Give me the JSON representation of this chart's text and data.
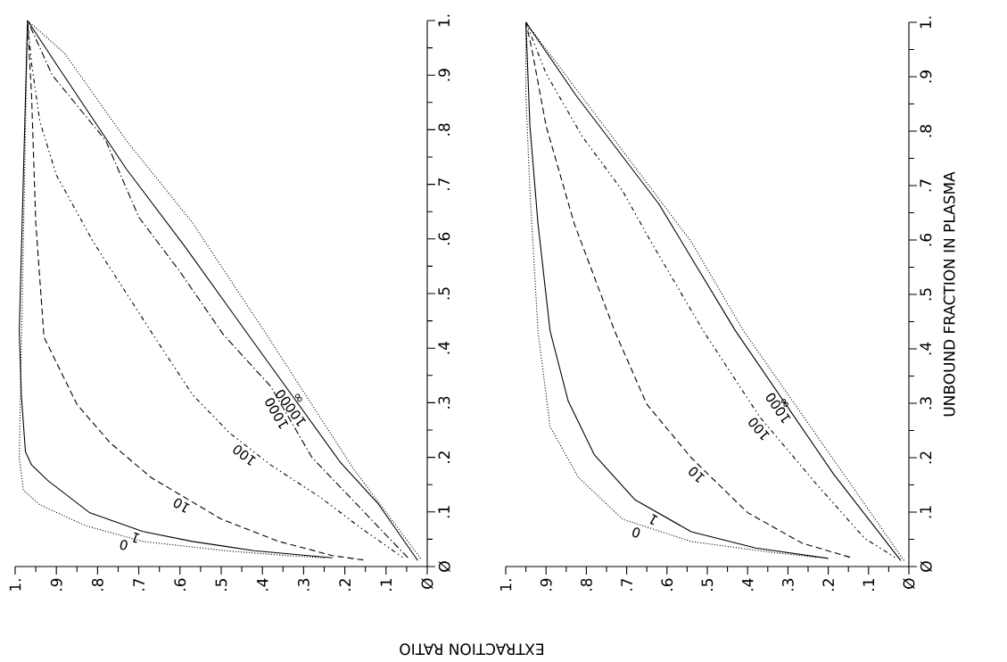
{
  "chart_data": [
    {
      "type": "line",
      "xlim": [
        1,
        0
      ],
      "ylim": [
        0,
        1
      ],
      "xticks": [
        {
          "value": 0,
          "label": "Ø"
        },
        {
          "value": 0.05,
          "label": null
        },
        {
          "value": 0.1,
          "label": ".1"
        },
        {
          "value": 0.15,
          "label": null
        },
        {
          "value": 0.2,
          "label": ".2"
        },
        {
          "value": 0.25,
          "label": null
        },
        {
          "value": 0.3,
          "label": ".3"
        },
        {
          "value": 0.35,
          "label": null
        },
        {
          "value": 0.4,
          "label": ".4"
        },
        {
          "value": 0.45,
          "label": null
        },
        {
          "value": 0.5,
          "label": ".5"
        },
        {
          "value": 0.55,
          "label": null
        },
        {
          "value": 0.6,
          "label": ".6"
        },
        {
          "value": 0.65,
          "label": null
        },
        {
          "value": 0.7,
          "label": ".7"
        },
        {
          "value": 0.75,
          "label": null
        },
        {
          "value": 0.8,
          "label": ".8"
        },
        {
          "value": 0.85,
          "label": null
        },
        {
          "value": 0.9,
          "label": ".9"
        },
        {
          "value": 0.95,
          "label": null
        },
        {
          "value": 1,
          "label": "1."
        }
      ],
      "yticks": [
        {
          "value": 0,
          "label": "Ø"
        },
        {
          "value": 0.05,
          "label": null
        },
        {
          "value": 0.1,
          "label": ".1"
        },
        {
          "value": 0.15,
          "label": null
        },
        {
          "value": 0.2,
          "label": ".2"
        },
        {
          "value": 0.25,
          "label": null
        },
        {
          "value": 0.3,
          "label": ".3"
        },
        {
          "value": 0.35,
          "label": null
        },
        {
          "value": 0.4,
          "label": ".4"
        },
        {
          "value": 0.45,
          "label": null
        },
        {
          "value": 0.5,
          "label": ".5"
        },
        {
          "value": 0.55,
          "label": null
        },
        {
          "value": 0.6,
          "label": ".6"
        },
        {
          "value": 0.65,
          "label": null
        },
        {
          "value": 0.7,
          "label": ".7"
        },
        {
          "value": 0.75,
          "label": null
        },
        {
          "value": 0.8,
          "label": ".8"
        },
        {
          "value": 0.85,
          "label": null
        },
        {
          "value": 0.9,
          "label": ".9"
        },
        {
          "value": 0.95,
          "label": null
        },
        {
          "value": 1,
          "label": "1."
        }
      ],
      "series": [
        {
          "name": "0",
          "color": "#000000",
          "line_style": "dotted",
          "values": [
            0.016,
            0.02,
            0.029,
            0.046,
            0.075,
            0.113,
            0.14,
            0.2,
            1
          ],
          "x": [
            0.25,
            0.34,
            0.49,
            0.69,
            0.83,
            0.94,
            0.98,
            0.99,
            0.97
          ]
        },
        {
          "name": "1",
          "color": "#000000",
          "line_style": "solid",
          "values": [
            0.016,
            0.029,
            0.046,
            0.064,
            0.099,
            0.157,
            0.186,
            0.21,
            0.315,
            0.43,
            1
          ],
          "x": [
            0.23,
            0.42,
            0.57,
            0.69,
            0.82,
            0.92,
            0.96,
            0.975,
            0.985,
            0.99,
            0.97
          ]
        },
        {
          "name": "10",
          "color": "#000000",
          "line_style": "dashed",
          "values": [
            0.012,
            0.02,
            0.046,
            0.087,
            0.163,
            0.227,
            0.297,
            0.42,
            0.63,
            0.86,
            1
          ],
          "x": [
            0.155,
            0.23,
            0.36,
            0.5,
            0.67,
            0.77,
            0.85,
            0.93,
            0.95,
            0.96,
            0.97
          ]
        },
        {
          "name": "100",
          "color": "#000000",
          "line_style": "dashdotdotted",
          "values": [
            0.017,
            0.07,
            0.127,
            0.186,
            0.245,
            0.315,
            0.43,
            0.594,
            0.717,
            0.815,
            0.92,
            1
          ],
          "x": [
            0.06,
            0.16,
            0.26,
            0.38,
            0.48,
            0.57,
            0.67,
            0.81,
            0.9,
            0.94,
            0.96,
            0.97
          ]
        },
        {
          "name": "1000",
          "color": "#000000",
          "line_style": "dashdotted",
          "values": [
            0.016,
            0.2,
            0.33,
            0.425,
            0.54,
            0.64,
            0.78,
            0.9,
            1
          ],
          "x": [
            0.047,
            0.28,
            0.38,
            0.495,
            0.6,
            0.7,
            0.78,
            0.91,
            0.97
          ]
        },
        {
          "name": "10000",
          "color": "#000000",
          "line_style": "solid",
          "values": [
            0.011,
            0.116,
            0.19,
            0.42,
            0.588,
            0.728,
            0.92,
            1
          ],
          "x": [
            0.023,
            0.12,
            0.21,
            0.43,
            0.59,
            0.73,
            0.9,
            0.97
          ]
        },
        {
          "name": "∞",
          "color": "#000000",
          "line_style": "dotted",
          "values": [
            0.015,
            0.18,
            0.425,
            0.63,
            0.78,
            0.94,
            1
          ],
          "x": [
            0.016,
            0.18,
            0.39,
            0.57,
            0.73,
            0.88,
            0.97
          ]
        }
      ]
    },
    {
      "type": "line",
      "xlim": [
        1,
        0
      ],
      "ylim": [
        0,
        1
      ],
      "xlabel": "EXTRACTION RATIO",
      "ylabel": "UNBOUND FRACTION IN PLASMA",
      "xticks": [
        {
          "value": 0,
          "label": "Ø"
        },
        {
          "value": 0.05,
          "label": null
        },
        {
          "value": 0.1,
          "label": ".1"
        },
        {
          "value": 0.15,
          "label": null
        },
        {
          "value": 0.2,
          "label": ".2"
        },
        {
          "value": 0.25,
          "label": null
        },
        {
          "value": 0.3,
          "label": ".3"
        },
        {
          "value": 0.35,
          "label": null
        },
        {
          "value": 0.4,
          "label": ".4"
        },
        {
          "value": 0.45,
          "label": null
        },
        {
          "value": 0.5,
          "label": ".5"
        },
        {
          "value": 0.55,
          "label": null
        },
        {
          "value": 0.6,
          "label": ".6"
        },
        {
          "value": 0.65,
          "label": null
        },
        {
          "value": 0.7,
          "label": ".7"
        },
        {
          "value": 0.75,
          "label": null
        },
        {
          "value": 0.8,
          "label": ".8"
        },
        {
          "value": 0.85,
          "label": null
        },
        {
          "value": 0.9,
          "label": ".9"
        },
        {
          "value": 0.95,
          "label": null
        },
        {
          "value": 1,
          "label": "1."
        }
      ],
      "yticks": [
        {
          "value": 0,
          "label": "Ø"
        },
        {
          "value": 0.05,
          "label": null
        },
        {
          "value": 0.1,
          "label": ".1"
        },
        {
          "value": 0.15,
          "label": null
        },
        {
          "value": 0.2,
          "label": ".2"
        },
        {
          "value": 0.25,
          "label": null
        },
        {
          "value": 0.3,
          "label": ".3"
        },
        {
          "value": 0.35,
          "label": null
        },
        {
          "value": 0.4,
          "label": ".4"
        },
        {
          "value": 0.45,
          "label": null
        },
        {
          "value": 0.5,
          "label": ".5"
        },
        {
          "value": 0.55,
          "label": null
        },
        {
          "value": 0.6,
          "label": ".6"
        },
        {
          "value": 0.65,
          "label": null
        },
        {
          "value": 0.7,
          "label": ".7"
        },
        {
          "value": 0.75,
          "label": null
        },
        {
          "value": 0.8,
          "label": ".8"
        },
        {
          "value": 0.85,
          "label": null
        },
        {
          "value": 0.9,
          "label": ".9"
        },
        {
          "value": 0.95,
          "label": null
        },
        {
          "value": 1,
          "label": "1."
        }
      ],
      "series": [
        {
          "name": "0",
          "color": "#000000",
          "line_style": "dotted",
          "values": [
            0.017,
            0.026,
            0.046,
            0.087,
            0.164,
            0.257,
            0.433,
            0.69,
            0.866,
            1
          ],
          "x": [
            0.23,
            0.34,
            0.54,
            0.71,
            0.82,
            0.89,
            0.92,
            0.94,
            0.95,
            0.95
          ]
        },
        {
          "name": "1",
          "color": "#000000",
          "line_style": "solid",
          "values": [
            0.015,
            0.034,
            0.064,
            0.123,
            0.205,
            0.304,
            0.433,
            0.63,
            0.81,
            1
          ],
          "x": [
            0.2,
            0.38,
            0.54,
            0.68,
            0.78,
            0.845,
            0.89,
            0.92,
            0.94,
            0.95
          ]
        },
        {
          "name": "10",
          "color": "#000000",
          "line_style": "dashed",
          "values": [
            0.017,
            0.043,
            0.099,
            0.2,
            0.298,
            0.433,
            0.63,
            0.81,
            0.95,
            1
          ],
          "x": [
            0.146,
            0.265,
            0.4,
            0.54,
            0.65,
            0.73,
            0.83,
            0.9,
            0.935,
            0.95
          ]
        },
        {
          "name": "100",
          "color": "#000000",
          "line_style": "dashdotdotted",
          "values": [
            0.017,
            0.052,
            0.152,
            0.275,
            0.433,
            0.597,
            0.69,
            0.79,
            0.906,
            1
          ],
          "x": [
            0.035,
            0.11,
            0.23,
            0.37,
            0.51,
            0.64,
            0.71,
            0.81,
            0.9,
            0.95
          ]
        },
        {
          "name": "1000",
          "color": "#000000",
          "line_style": "solid",
          "values": [
            0.011,
            0.169,
            0.433,
            0.666,
            0.866,
            1
          ],
          "x": [
            0.02,
            0.186,
            0.43,
            0.62,
            0.826,
            0.95
          ]
        },
        {
          "name": "∞",
          "color": "#000000",
          "line_style": "dotted",
          "values": [
            0.011,
            0.433,
            0.597,
            1
          ],
          "x": [
            0.012,
            0.41,
            0.54,
            0.95
          ]
        }
      ]
    }
  ]
}
